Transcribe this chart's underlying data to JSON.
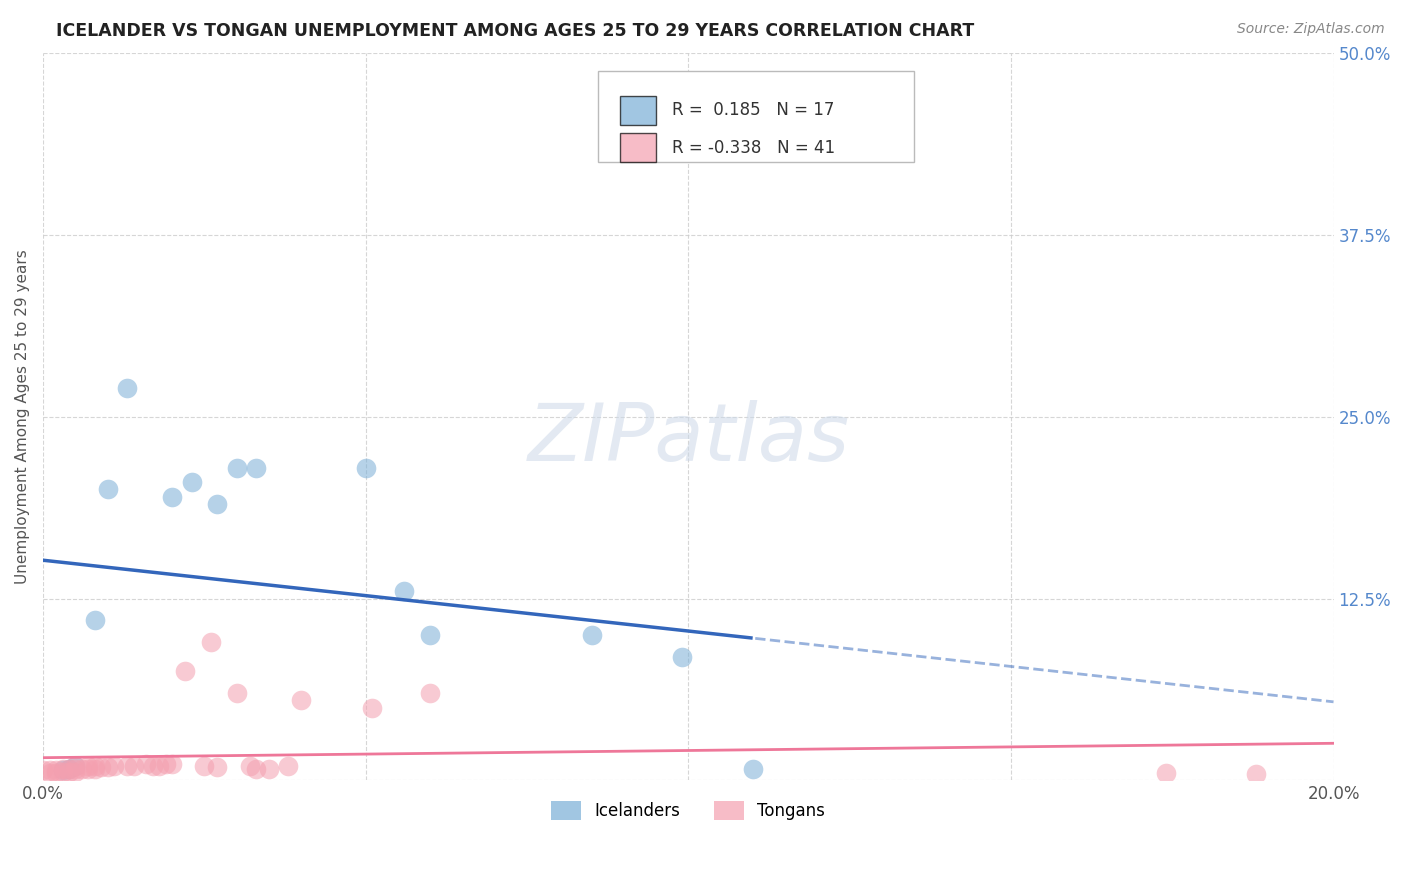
{
  "title": "ICELANDER VS TONGAN UNEMPLOYMENT AMONG AGES 25 TO 29 YEARS CORRELATION CHART",
  "source": "Source: ZipAtlas.com",
  "ylabel": "Unemployment Among Ages 25 to 29 years",
  "xlim": [
    0.0,
    0.2
  ],
  "ylim": [
    0.0,
    0.5
  ],
  "background_color": "#ffffff",
  "icelanders_color": "#7aaed6",
  "tongans_color": "#f4a0b0",
  "icelanders_R": 0.185,
  "icelanders_N": 17,
  "tongans_R": -0.338,
  "tongans_N": 41,
  "icelanders_x": [
    0.003,
    0.004,
    0.005,
    0.008,
    0.01,
    0.013,
    0.02,
    0.023,
    0.027,
    0.03,
    0.033,
    0.05,
    0.056,
    0.06,
    0.085,
    0.099,
    0.11
  ],
  "icelanders_y": [
    0.007,
    0.008,
    0.01,
    0.11,
    0.2,
    0.27,
    0.195,
    0.205,
    0.19,
    0.215,
    0.215,
    0.215,
    0.13,
    0.1,
    0.1,
    0.085,
    0.008
  ],
  "tongans_x": [
    0.0,
    0.001,
    0.001,
    0.002,
    0.002,
    0.003,
    0.003,
    0.004,
    0.004,
    0.005,
    0.005,
    0.005,
    0.006,
    0.007,
    0.007,
    0.008,
    0.008,
    0.009,
    0.01,
    0.011,
    0.013,
    0.014,
    0.016,
    0.017,
    0.018,
    0.019,
    0.02,
    0.022,
    0.025,
    0.026,
    0.027,
    0.03,
    0.032,
    0.033,
    0.035,
    0.038,
    0.04,
    0.051,
    0.06,
    0.174,
    0.188
  ],
  "tongans_y": [
    0.007,
    0.005,
    0.007,
    0.005,
    0.007,
    0.006,
    0.008,
    0.006,
    0.008,
    0.006,
    0.008,
    0.01,
    0.008,
    0.008,
    0.01,
    0.008,
    0.01,
    0.009,
    0.009,
    0.01,
    0.01,
    0.01,
    0.011,
    0.01,
    0.01,
    0.011,
    0.011,
    0.075,
    0.01,
    0.095,
    0.009,
    0.06,
    0.01,
    0.008,
    0.008,
    0.01,
    0.055,
    0.05,
    0.06,
    0.005,
    0.004
  ],
  "grid_color": "#cccccc",
  "trendline_ice_color": "#3366bb",
  "trendline_ton_color": "#ee7799"
}
